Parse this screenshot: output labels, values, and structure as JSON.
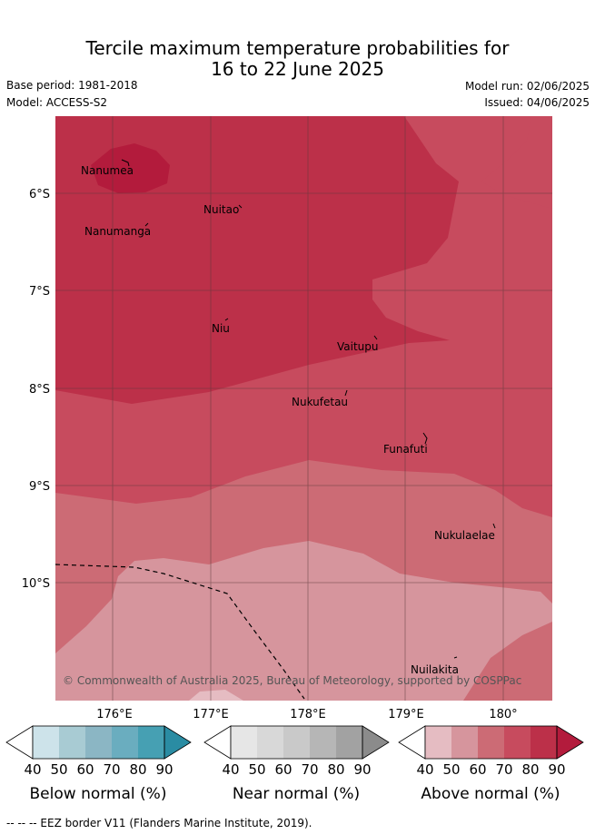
{
  "title": {
    "line1": "Tercile maximum temperature probabilities for",
    "line2": "16 to 22 June 2025"
  },
  "meta": {
    "base_period": "Base period: 1981-2018",
    "model": "Model: ACCESS-S2",
    "model_run": "Model run: 02/06/2025",
    "issued": "Issued: 04/06/2025"
  },
  "map": {
    "lat_labels": [
      "6°S",
      "7°S",
      "8°S",
      "9°S",
      "10°S"
    ],
    "lon_labels": [
      "176°E",
      "177°E",
      "178°E",
      "179°E",
      "180°"
    ],
    "islands": [
      "Nanumea",
      "Nuitao",
      "Nanumanga",
      "Niu",
      "Vaitupu",
      "Nukufetau",
      "Funafuti",
      "Nukulaelae",
      "Nuilakita"
    ],
    "copyright": "© Commonwealth of Australia 2025, Bureau of Meteorology, supported by COSPPac",
    "colors": {
      "above_90": "#b31b3c",
      "above_80": "#bc3049",
      "above_70": "#c74b5e",
      "above_60": "#cc6b75",
      "above_50": "#d6959d",
      "above_40": "#e5bcc2",
      "grid": "#5a3a3a",
      "eez": "#000000"
    }
  },
  "colorbars": [
    {
      "title": "Below normal (%)",
      "ticks": [
        "40",
        "50",
        "60",
        "70",
        "80",
        "90"
      ],
      "colors": [
        "#cde3ea",
        "#a8cbd3",
        "#8bb6c4",
        "#6aadbf",
        "#46a0b3",
        "#2a8ca3"
      ]
    },
    {
      "title": "Near normal (%)",
      "ticks": [
        "40",
        "50",
        "60",
        "70",
        "80",
        "90"
      ],
      "colors": [
        "#e6e6e6",
        "#d8d8d8",
        "#c9c9c9",
        "#b6b6b6",
        "#a2a2a2",
        "#8b8b8b"
      ]
    },
    {
      "title": "Above normal (%)",
      "ticks": [
        "40",
        "50",
        "60",
        "70",
        "80",
        "90"
      ],
      "colors": [
        "#e5bcc2",
        "#d6959d",
        "#cc6b75",
        "#c74b5e",
        "#bc3049",
        "#b31b3c"
      ]
    }
  ],
  "footer": {
    "legend": "--  --  -- EEZ border V11 (Flanders Marine Institute, 2019)."
  }
}
